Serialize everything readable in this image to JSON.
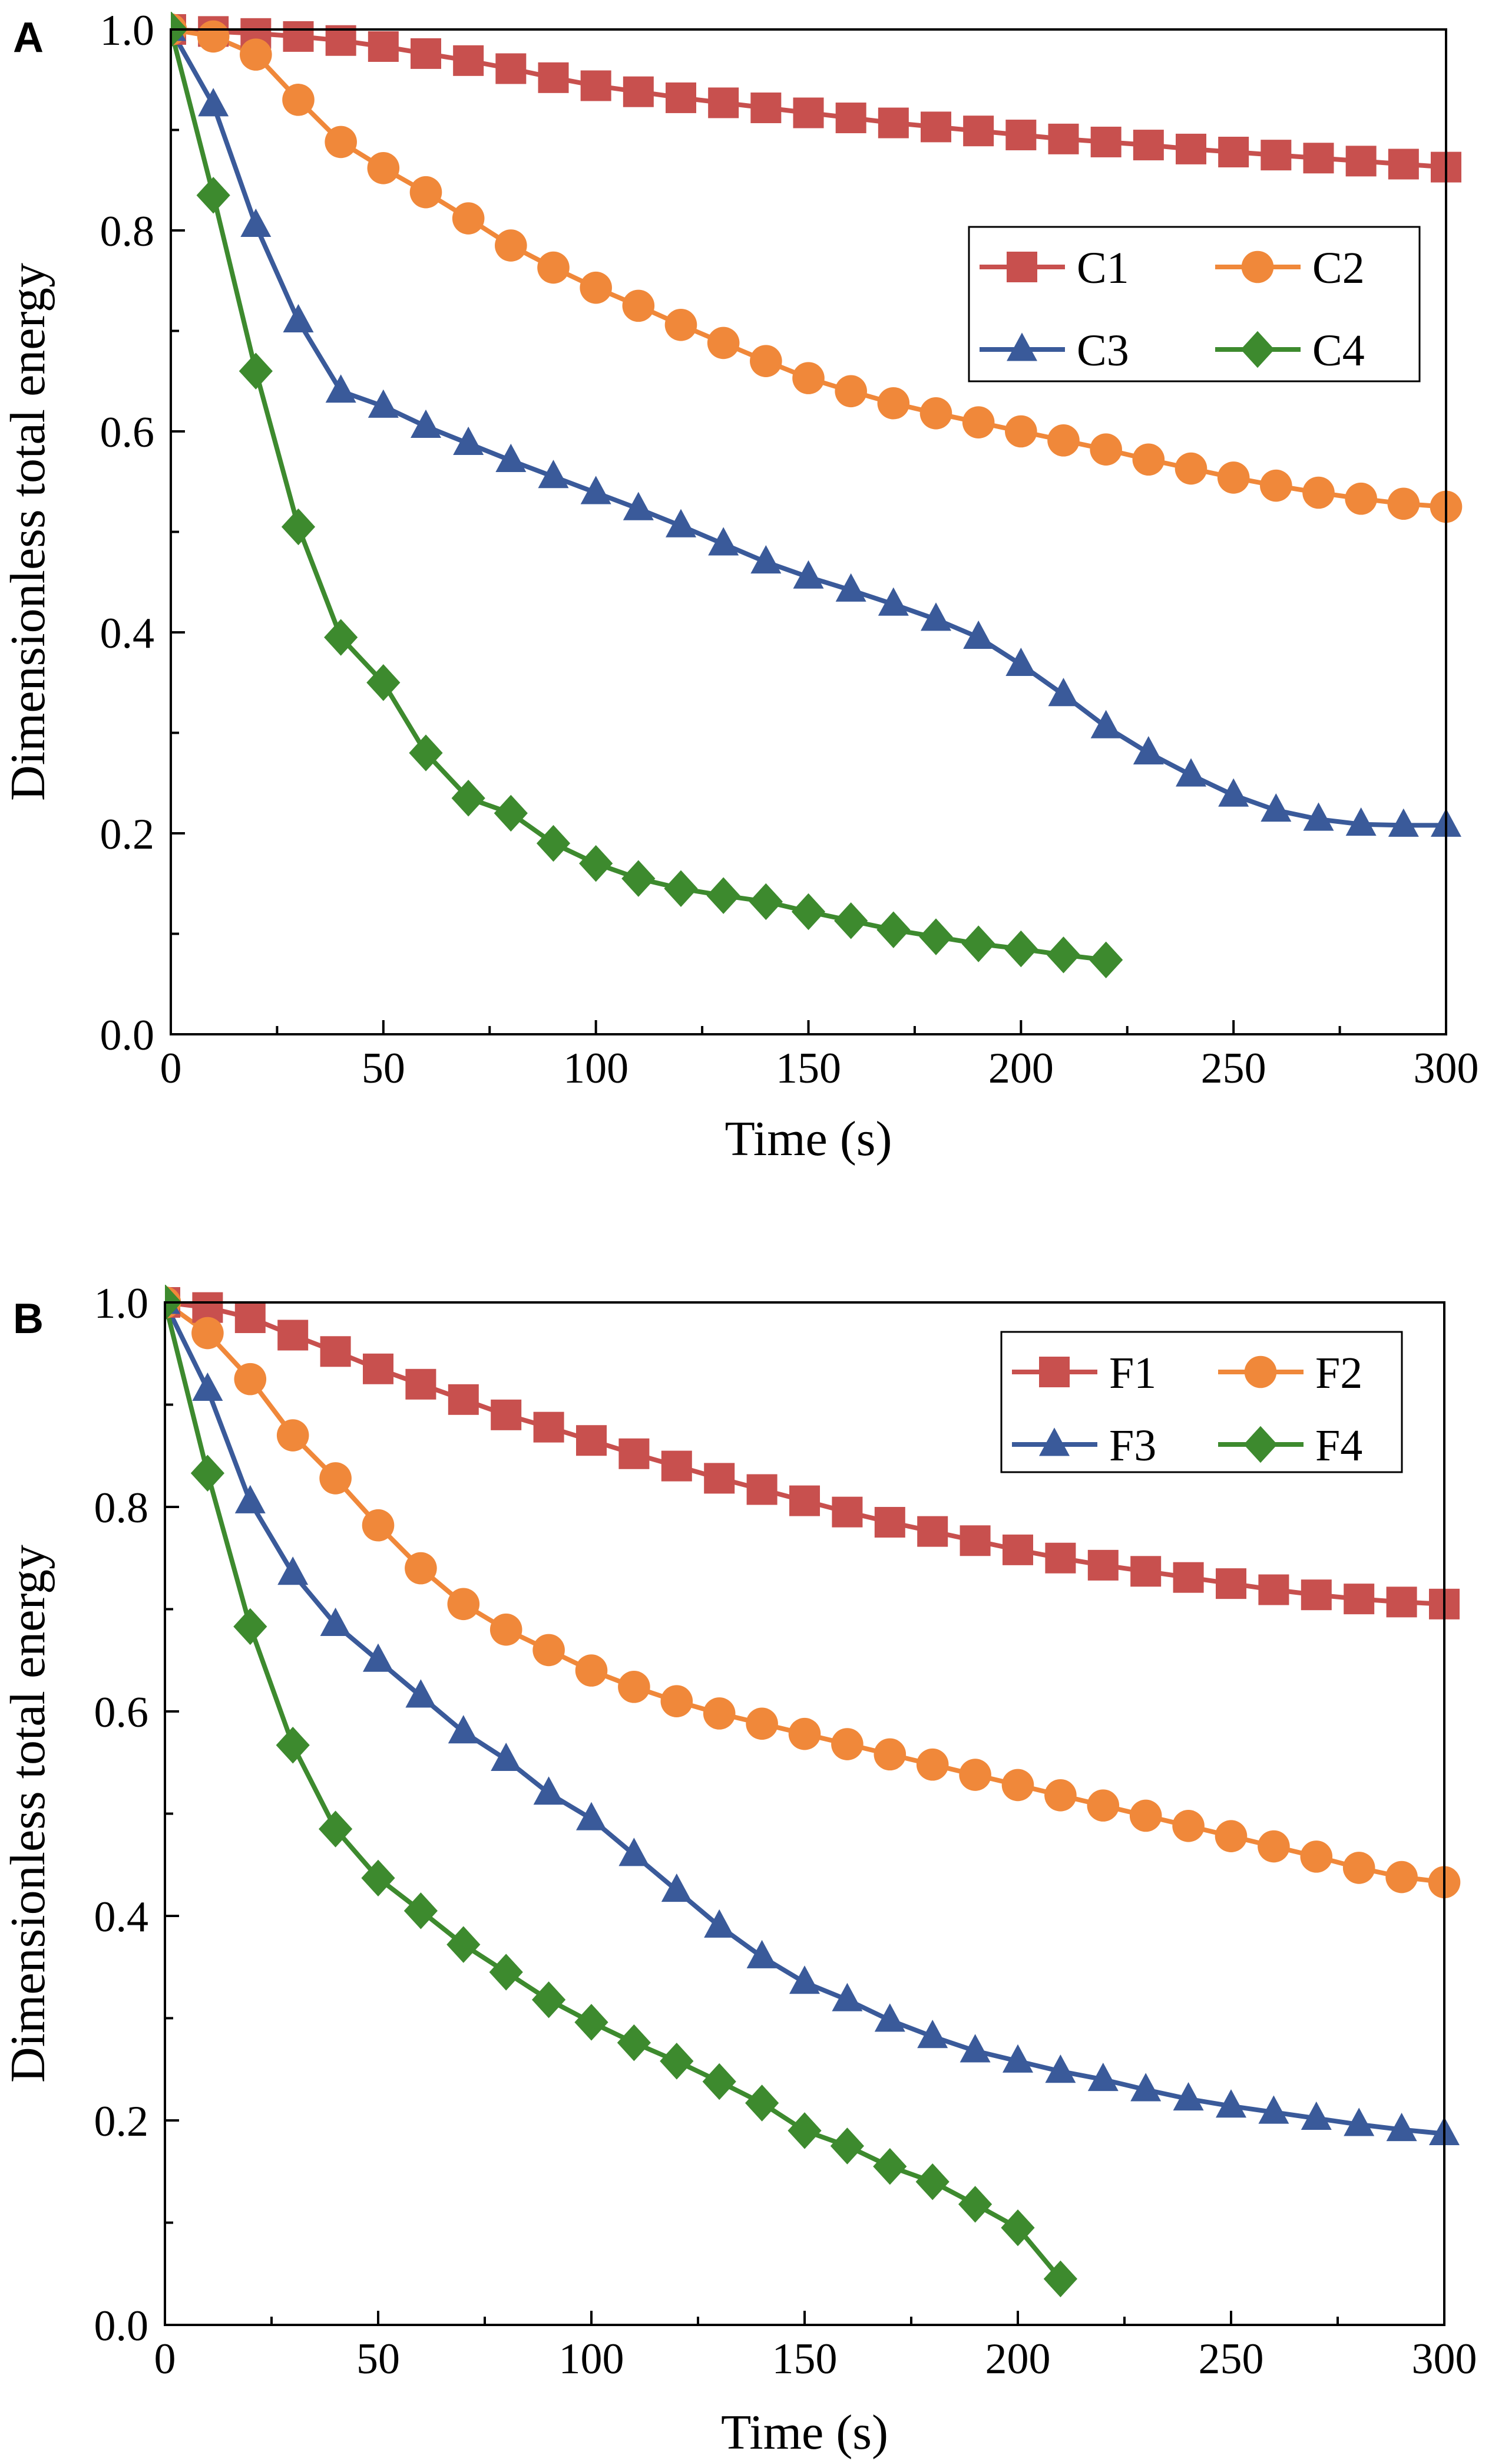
{
  "chart_data": [
    {
      "panel_label": "A",
      "type": "line",
      "xlabel": "Time (s)",
      "ylabel": "Dimensionless total energy",
      "xlim": [
        0,
        300
      ],
      "ylim": [
        0,
        1.0
      ],
      "xticks": [
        "0",
        "50",
        "100",
        "150",
        "200",
        "250",
        "300"
      ],
      "yticks": [
        "0.0",
        "0.2",
        "0.4",
        "0.6",
        "0.8",
        "1.0"
      ],
      "legend_position": "top-right",
      "series": [
        {
          "name": "C1",
          "color": "#C8504E",
          "marker": "square",
          "x": [
            0,
            10,
            20,
            30,
            40,
            50,
            60,
            70,
            80,
            90,
            100,
            110,
            120,
            130,
            140,
            150,
            160,
            170,
            180,
            190,
            200,
            210,
            220,
            230,
            240,
            250,
            260,
            270,
            280,
            290,
            300
          ],
          "y": [
            1.0,
            0.998,
            0.996,
            0.993,
            0.989,
            0.983,
            0.976,
            0.969,
            0.961,
            0.952,
            0.944,
            0.938,
            0.932,
            0.927,
            0.922,
            0.917,
            0.912,
            0.907,
            0.903,
            0.899,
            0.895,
            0.891,
            0.888,
            0.885,
            0.881,
            0.878,
            0.875,
            0.872,
            0.869,
            0.866,
            0.863
          ]
        },
        {
          "name": "C2",
          "color": "#F0883A",
          "marker": "circle",
          "x": [
            0,
            10,
            20,
            30,
            40,
            50,
            60,
            70,
            80,
            90,
            100,
            110,
            120,
            130,
            140,
            150,
            160,
            170,
            180,
            190,
            200,
            210,
            220,
            230,
            240,
            250,
            260,
            270,
            280,
            290,
            300
          ],
          "y": [
            1.0,
            0.993,
            0.975,
            0.93,
            0.888,
            0.862,
            0.838,
            0.812,
            0.785,
            0.763,
            0.743,
            0.725,
            0.706,
            0.688,
            0.67,
            0.653,
            0.64,
            0.628,
            0.618,
            0.609,
            0.6,
            0.591,
            0.582,
            0.572,
            0.563,
            0.554,
            0.546,
            0.539,
            0.533,
            0.528,
            0.525
          ]
        },
        {
          "name": "C3",
          "color": "#3A5A9A",
          "marker": "triangle",
          "x": [
            0,
            10,
            20,
            30,
            40,
            50,
            60,
            70,
            80,
            90,
            100,
            110,
            120,
            130,
            140,
            150,
            160,
            170,
            180,
            190,
            200,
            210,
            220,
            230,
            240,
            250,
            260,
            270,
            280,
            290,
            300
          ],
          "y": [
            1.0,
            0.925,
            0.805,
            0.71,
            0.64,
            0.625,
            0.605,
            0.588,
            0.571,
            0.555,
            0.539,
            0.523,
            0.506,
            0.488,
            0.47,
            0.455,
            0.442,
            0.428,
            0.413,
            0.395,
            0.368,
            0.338,
            0.306,
            0.28,
            0.258,
            0.238,
            0.223,
            0.214,
            0.209,
            0.208,
            0.208
          ]
        },
        {
          "name": "C4",
          "color": "#3D8A2E",
          "marker": "diamond",
          "x": [
            0,
            10,
            20,
            30,
            40,
            50,
            60,
            70,
            80,
            90,
            100,
            110,
            120,
            130,
            140,
            150,
            160,
            170,
            180,
            190,
            200,
            210,
            220
          ],
          "y": [
            1.0,
            0.835,
            0.66,
            0.505,
            0.395,
            0.35,
            0.28,
            0.235,
            0.22,
            0.19,
            0.17,
            0.155,
            0.145,
            0.138,
            0.132,
            0.122,
            0.113,
            0.104,
            0.097,
            0.09,
            0.085,
            0.079,
            0.074
          ]
        }
      ]
    },
    {
      "panel_label": "B",
      "type": "line",
      "xlabel": "Time (s)",
      "ylabel": "Dimensionless total energy",
      "xlim": [
        0,
        300
      ],
      "ylim": [
        0,
        1.0
      ],
      "xticks": [
        "0",
        "50",
        "100",
        "150",
        "200",
        "250",
        "300"
      ],
      "yticks": [
        "0.0",
        "0.2",
        "0.4",
        "0.6",
        "0.8",
        "1.0"
      ],
      "legend_position": "top-right",
      "series": [
        {
          "name": "F1",
          "color": "#C8504E",
          "marker": "square",
          "x": [
            0,
            10,
            20,
            30,
            40,
            50,
            60,
            70,
            80,
            90,
            100,
            110,
            120,
            130,
            140,
            150,
            160,
            170,
            180,
            190,
            200,
            210,
            220,
            230,
            240,
            250,
            260,
            270,
            280,
            290,
            300
          ],
          "y": [
            1.0,
            0.995,
            0.985,
            0.968,
            0.952,
            0.935,
            0.92,
            0.905,
            0.89,
            0.878,
            0.865,
            0.852,
            0.84,
            0.828,
            0.817,
            0.806,
            0.795,
            0.785,
            0.776,
            0.767,
            0.758,
            0.75,
            0.743,
            0.737,
            0.731,
            0.725,
            0.719,
            0.714,
            0.71,
            0.707,
            0.705
          ]
        },
        {
          "name": "F2",
          "color": "#F0883A",
          "marker": "circle",
          "x": [
            0,
            10,
            20,
            30,
            40,
            50,
            60,
            70,
            80,
            90,
            100,
            110,
            120,
            130,
            140,
            150,
            160,
            170,
            180,
            190,
            200,
            210,
            220,
            230,
            240,
            250,
            260,
            270,
            280,
            290,
            300
          ],
          "y": [
            1.0,
            0.97,
            0.925,
            0.87,
            0.828,
            0.782,
            0.74,
            0.705,
            0.68,
            0.66,
            0.64,
            0.624,
            0.61,
            0.598,
            0.588,
            0.578,
            0.568,
            0.558,
            0.548,
            0.538,
            0.528,
            0.518,
            0.508,
            0.498,
            0.488,
            0.478,
            0.468,
            0.458,
            0.447,
            0.438,
            0.433
          ]
        },
        {
          "name": "F3",
          "color": "#3A5A9A",
          "marker": "triangle",
          "x": [
            0,
            10,
            20,
            30,
            40,
            50,
            60,
            70,
            80,
            90,
            100,
            110,
            120,
            130,
            140,
            150,
            160,
            170,
            180,
            190,
            200,
            210,
            220,
            230,
            240,
            250,
            260,
            270,
            280,
            290,
            300
          ],
          "y": [
            1.0,
            0.915,
            0.805,
            0.735,
            0.685,
            0.65,
            0.615,
            0.58,
            0.553,
            0.52,
            0.495,
            0.46,
            0.425,
            0.39,
            0.36,
            0.335,
            0.318,
            0.298,
            0.282,
            0.268,
            0.258,
            0.248,
            0.24,
            0.23,
            0.221,
            0.214,
            0.208,
            0.202,
            0.196,
            0.191,
            0.187
          ]
        },
        {
          "name": "F4",
          "color": "#3D8A2E",
          "marker": "diamond",
          "x": [
            0,
            10,
            20,
            30,
            40,
            50,
            60,
            70,
            80,
            90,
            100,
            110,
            120,
            130,
            140,
            150,
            160,
            170,
            180,
            190,
            200,
            210
          ],
          "y": [
            1.0,
            0.833,
            0.683,
            0.567,
            0.485,
            0.437,
            0.405,
            0.372,
            0.345,
            0.318,
            0.296,
            0.276,
            0.258,
            0.238,
            0.217,
            0.19,
            0.175,
            0.155,
            0.14,
            0.118,
            0.095,
            0.045
          ]
        }
      ]
    }
  ]
}
